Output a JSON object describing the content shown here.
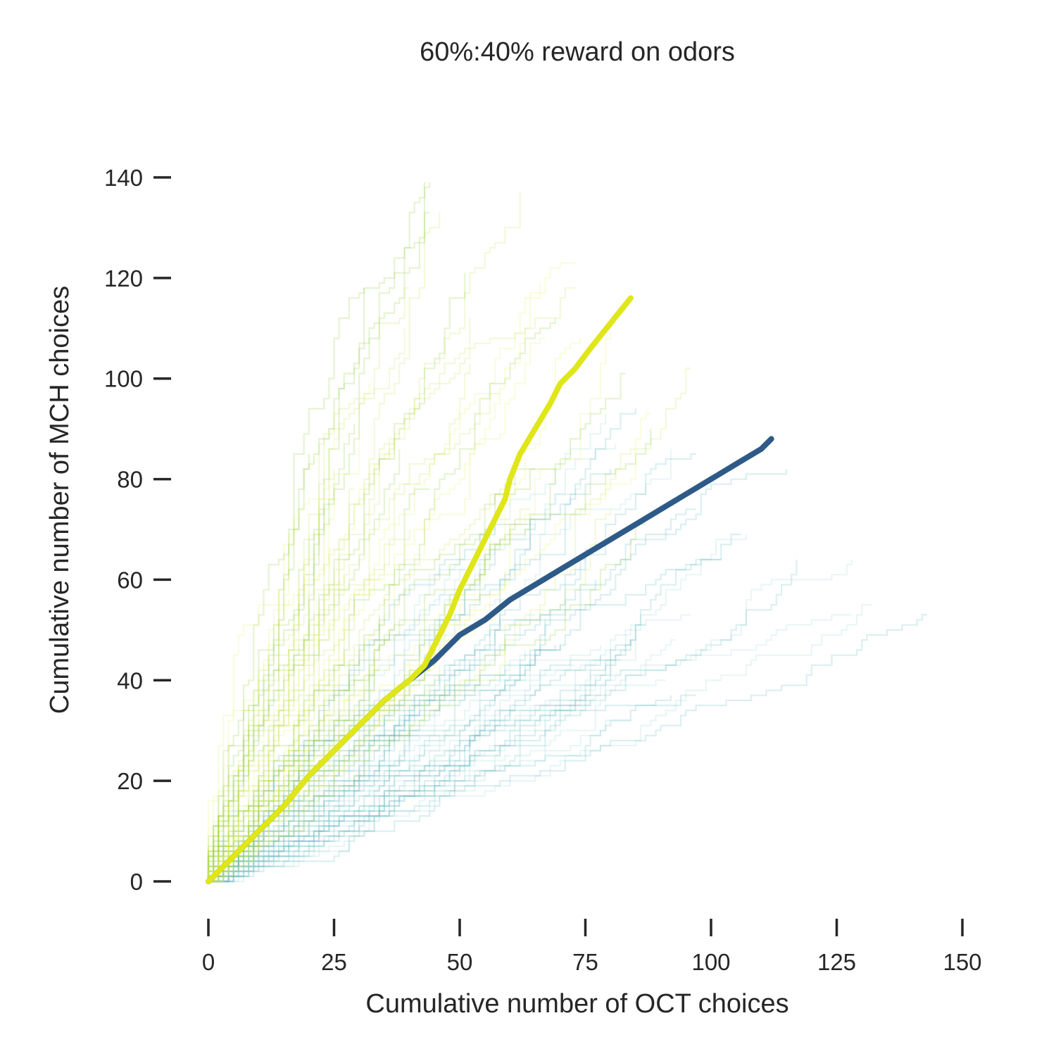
{
  "chart_data": {
    "type": "line",
    "title": "60%:40% reward on odors",
    "xlabel": "Cumulative number of OCT choices",
    "ylabel": "Cumulative number of MCH choices",
    "xlim": [
      -3,
      155
    ],
    "ylim": [
      -5,
      152
    ],
    "xticks": [
      0,
      25,
      50,
      75,
      100,
      125,
      150
    ],
    "yticks": [
      0,
      20,
      40,
      60,
      80,
      100,
      120,
      140
    ],
    "grid": false,
    "legend": "none",
    "background_colors": {
      "teal": "#5fb8bd",
      "teal_light": "#9fd6d6",
      "green": "#8ecb3a",
      "lime": "#c9e35a",
      "yellow": "#e6f26b"
    },
    "series": [
      {
        "color": "#2e5a87",
        "x": [
          0,
          5,
          10,
          15,
          20,
          25,
          30,
          35,
          40,
          45,
          50,
          55,
          60,
          65,
          70,
          75,
          80,
          85,
          90,
          95,
          100,
          105,
          110,
          112
        ],
        "y": [
          0,
          5,
          10,
          15,
          21,
          26,
          31,
          36,
          40,
          44,
          49,
          52,
          56,
          59,
          62,
          65,
          68,
          71,
          74,
          77,
          80,
          83,
          86,
          88
        ]
      },
      {
        "color": "#dfe619",
        "x": [
          0,
          5,
          10,
          15,
          20,
          25,
          30,
          35,
          40,
          43,
          45,
          48,
          50,
          53,
          56,
          59,
          60,
          62,
          65,
          68,
          70,
          73,
          76,
          80,
          84
        ],
        "y": [
          0,
          5,
          10,
          15,
          21,
          26,
          31,
          36,
          40,
          43,
          47,
          53,
          58,
          64,
          70,
          76,
          80,
          85,
          90,
          95,
          99,
          102,
          106,
          111,
          116
        ]
      }
    ]
  }
}
